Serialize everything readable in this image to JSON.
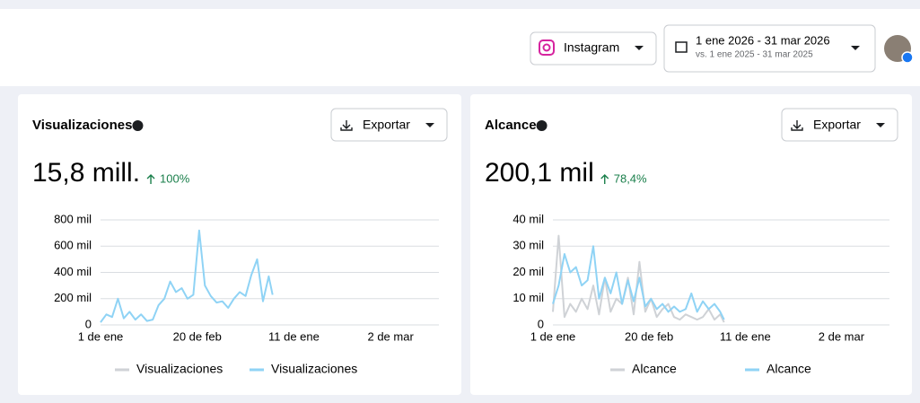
{
  "header": {
    "platform": "Instagram",
    "date_range": "1 ene 2026 - 31 mar 2026",
    "compare_range": "vs. 1 ene 2025 - 31 mar 2025"
  },
  "cards": [
    {
      "title": "Visualizaciones",
      "export": "Exportar",
      "total": "15,8 mill.",
      "change": "100%"
    },
    {
      "title": "Alcance",
      "export": "Exportar",
      "total": "200,1 mil",
      "change": "78,4%"
    }
  ],
  "chart_data": [
    {
      "type": "line",
      "x": [
        0,
        3,
        6,
        9,
        12,
        15,
        18,
        21,
        24,
        27,
        30,
        33,
        36,
        39,
        42,
        45,
        48,
        51,
        54,
        57,
        60,
        63,
        66,
        69,
        72,
        75,
        78,
        81,
        84,
        87,
        89
      ],
      "xlim": [
        0,
        175
      ],
      "xticks": [
        {
          "value": 0,
          "label": "1 de ene"
        },
        {
          "value": 50,
          "label": "20 de feb"
        },
        {
          "value": 100,
          "label": "11 de ene"
        },
        {
          "value": 150,
          "label": "2 de mar"
        }
      ],
      "ylim": [
        0,
        800000
      ],
      "yticks": [
        0,
        {
          "value": 200000,
          "label": "200 mil"
        },
        {
          "value": 400000,
          "label": "400 mil"
        },
        {
          "value": 600000,
          "label": "600 mil"
        },
        {
          "value": 800000,
          "label": "800 mil"
        }
      ],
      "grid": true,
      "series": [
        {
          "name": "Visualizaciones",
          "color": "#cfd2d6",
          "values": [
            null,
            null,
            null,
            null,
            null,
            null,
            null,
            null,
            null,
            null,
            null,
            null,
            null,
            null,
            null,
            null,
            null,
            null,
            null,
            null,
            null,
            null,
            null,
            null,
            null,
            null,
            null,
            null,
            null,
            null,
            null
          ]
        },
        {
          "name": "Visualizaciones",
          "color": "#8fd3f5",
          "values": [
            20000,
            80000,
            60000,
            200000,
            50000,
            100000,
            40000,
            80000,
            30000,
            40000,
            150000,
            200000,
            330000,
            250000,
            280000,
            200000,
            230000,
            720000,
            300000,
            220000,
            170000,
            180000,
            130000,
            200000,
            250000,
            220000,
            380000,
            500000,
            180000,
            370000,
            230000
          ]
        }
      ]
    },
    {
      "type": "line",
      "x": [
        0,
        3,
        6,
        9,
        12,
        15,
        18,
        21,
        24,
        27,
        30,
        33,
        36,
        39,
        42,
        45,
        48,
        51,
        54,
        57,
        60,
        63,
        66,
        69,
        72,
        75,
        78,
        81,
        84,
        87,
        89
      ],
      "xlim": [
        0,
        175
      ],
      "xticks": [
        {
          "value": 0,
          "label": "1 de ene"
        },
        {
          "value": 50,
          "label": "20 de feb"
        },
        {
          "value": 100,
          "label": "11 de ene"
        },
        {
          "value": 150,
          "label": "2 de mar"
        }
      ],
      "ylim": [
        0,
        40000
      ],
      "yticks": [
        0,
        {
          "value": 10000,
          "label": "10 mil"
        },
        {
          "value": 20000,
          "label": "20 mil"
        },
        {
          "value": 30000,
          "label": "30 mil"
        },
        {
          "value": 40000,
          "label": "40 mil"
        }
      ],
      "grid": true,
      "series": [
        {
          "name": "Alcance",
          "color": "#cfd2d6",
          "values": [
            5000,
            34000,
            3000,
            8000,
            5000,
            10000,
            6000,
            15000,
            4000,
            18000,
            5000,
            10000,
            8000,
            18000,
            4000,
            24000,
            5000,
            10000,
            3000,
            6000,
            8000,
            3000,
            2000,
            4000,
            3000,
            2000,
            3000,
            6000,
            2000,
            4000,
            1000
          ]
        },
        {
          "name": "Alcance",
          "color": "#8fd3f5",
          "values": [
            8000,
            15000,
            27000,
            20000,
            22000,
            15000,
            17000,
            30000,
            10000,
            18000,
            12000,
            20000,
            8000,
            17000,
            9000,
            18000,
            7000,
            10000,
            6000,
            8000,
            5000,
            7000,
            5000,
            6000,
            12000,
            5000,
            9000,
            6000,
            8000,
            5000,
            2000
          ]
        }
      ]
    }
  ]
}
